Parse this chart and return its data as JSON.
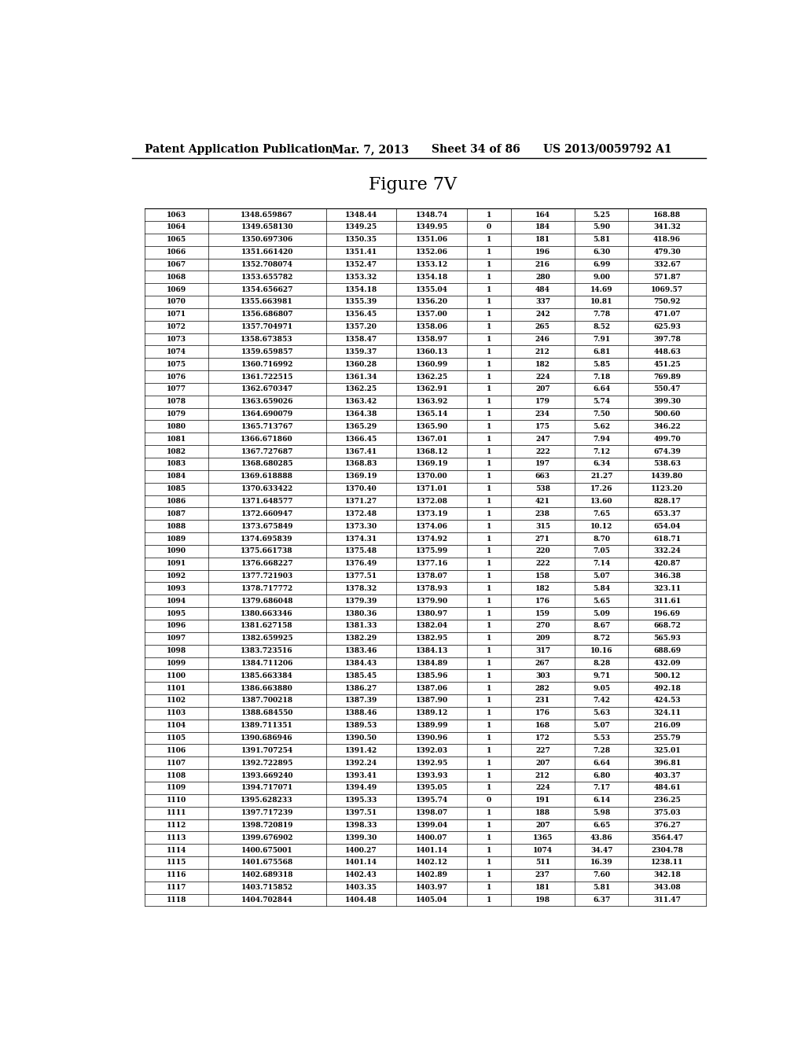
{
  "header_text": "Patent Application Publication",
  "date_text": "Mar. 7, 2013",
  "sheet_text": "Sheet 34 of 86",
  "patent_text": "US 2013/0059792 A1",
  "figure_title": "Figure 7V",
  "background_color": "#ffffff",
  "table_data": [
    [
      "1063",
      "1348.659867",
      "1348.44",
      "1348.74",
      "1",
      "164",
      "5.25",
      "168.88"
    ],
    [
      "1064",
      "1349.658130",
      "1349.25",
      "1349.95",
      "0",
      "184",
      "5.90",
      "341.32"
    ],
    [
      "1065",
      "1350.697306",
      "1350.35",
      "1351.06",
      "1",
      "181",
      "5.81",
      "418.96"
    ],
    [
      "1066",
      "1351.661420",
      "1351.41",
      "1352.06",
      "1",
      "196",
      "6.30",
      "479.30"
    ],
    [
      "1067",
      "1352.708074",
      "1352.47",
      "1353.12",
      "1",
      "216",
      "6.99",
      "332.67"
    ],
    [
      "1068",
      "1353.655782",
      "1353.32",
      "1354.18",
      "1",
      "280",
      "9.00",
      "571.87"
    ],
    [
      "1069",
      "1354.656627",
      "1354.18",
      "1355.04",
      "1",
      "484",
      "14.69",
      "1069.57"
    ],
    [
      "1070",
      "1355.663981",
      "1355.39",
      "1356.20",
      "1",
      "337",
      "10.81",
      "750.92"
    ],
    [
      "1071",
      "1356.686807",
      "1356.45",
      "1357.00",
      "1",
      "242",
      "7.78",
      "471.07"
    ],
    [
      "1072",
      "1357.704971",
      "1357.20",
      "1358.06",
      "1",
      "265",
      "8.52",
      "625.93"
    ],
    [
      "1073",
      "1358.673853",
      "1358.47",
      "1358.97",
      "1",
      "246",
      "7.91",
      "397.78"
    ],
    [
      "1074",
      "1359.659857",
      "1359.37",
      "1360.13",
      "1",
      "212",
      "6.81",
      "448.63"
    ],
    [
      "1075",
      "1360.716992",
      "1360.28",
      "1360.99",
      "1",
      "182",
      "5.85",
      "451.25"
    ],
    [
      "1076",
      "1361.722515",
      "1361.34",
      "1362.25",
      "1",
      "224",
      "7.18",
      "769.89"
    ],
    [
      "1077",
      "1362.670347",
      "1362.25",
      "1362.91",
      "1",
      "207",
      "6.64",
      "550.47"
    ],
    [
      "1078",
      "1363.659026",
      "1363.42",
      "1363.92",
      "1",
      "179",
      "5.74",
      "399.30"
    ],
    [
      "1079",
      "1364.690079",
      "1364.38",
      "1365.14",
      "1",
      "234",
      "7.50",
      "500.60"
    ],
    [
      "1080",
      "1365.713767",
      "1365.29",
      "1365.90",
      "1",
      "175",
      "5.62",
      "346.22"
    ],
    [
      "1081",
      "1366.671860",
      "1366.45",
      "1367.01",
      "1",
      "247",
      "7.94",
      "499.70"
    ],
    [
      "1082",
      "1367.727687",
      "1367.41",
      "1368.12",
      "1",
      "222",
      "7.12",
      "674.39"
    ],
    [
      "1083",
      "1368.680285",
      "1368.83",
      "1369.19",
      "1",
      "197",
      "6.34",
      "538.63"
    ],
    [
      "1084",
      "1369.618888",
      "1369.19",
      "1370.00",
      "1",
      "663",
      "21.27",
      "1439.80"
    ],
    [
      "1085",
      "1370.633422",
      "1370.40",
      "1371.01",
      "1",
      "538",
      "17.26",
      "1123.20"
    ],
    [
      "1086",
      "1371.648577",
      "1371.27",
      "1372.08",
      "1",
      "421",
      "13.60",
      "828.17"
    ],
    [
      "1087",
      "1372.660947",
      "1372.48",
      "1373.19",
      "1",
      "238",
      "7.65",
      "653.37"
    ],
    [
      "1088",
      "1373.675849",
      "1373.30",
      "1374.06",
      "1",
      "315",
      "10.12",
      "654.04"
    ],
    [
      "1089",
      "1374.695839",
      "1374.31",
      "1374.92",
      "1",
      "271",
      "8.70",
      "618.71"
    ],
    [
      "1090",
      "1375.661738",
      "1375.48",
      "1375.99",
      "1",
      "220",
      "7.05",
      "332.24"
    ],
    [
      "1091",
      "1376.668227",
      "1376.49",
      "1377.16",
      "1",
      "222",
      "7.14",
      "420.87"
    ],
    [
      "1092",
      "1377.721903",
      "1377.51",
      "1378.07",
      "1",
      "158",
      "5.07",
      "346.38"
    ],
    [
      "1093",
      "1378.717772",
      "1378.32",
      "1378.93",
      "1",
      "182",
      "5.84",
      "323.11"
    ],
    [
      "1094",
      "1379.686048",
      "1379.39",
      "1379.90",
      "1",
      "176",
      "5.65",
      "311.61"
    ],
    [
      "1095",
      "1380.663346",
      "1380.36",
      "1380.97",
      "1",
      "159",
      "5.09",
      "196.69"
    ],
    [
      "1096",
      "1381.627158",
      "1381.33",
      "1382.04",
      "1",
      "270",
      "8.67",
      "668.72"
    ],
    [
      "1097",
      "1382.659925",
      "1382.29",
      "1382.95",
      "1",
      "209",
      "8.72",
      "565.93"
    ],
    [
      "1098",
      "1383.723516",
      "1383.46",
      "1384.13",
      "1",
      "317",
      "10.16",
      "688.69"
    ],
    [
      "1099",
      "1384.711206",
      "1384.43",
      "1384.89",
      "1",
      "267",
      "8.28",
      "432.09"
    ],
    [
      "1100",
      "1385.663384",
      "1385.45",
      "1385.96",
      "1",
      "303",
      "9.71",
      "500.12"
    ],
    [
      "1101",
      "1386.663880",
      "1386.27",
      "1387.06",
      "1",
      "282",
      "9.05",
      "492.18"
    ],
    [
      "1102",
      "1387.700218",
      "1387.39",
      "1387.90",
      "1",
      "231",
      "7.42",
      "424.53"
    ],
    [
      "1103",
      "1388.684550",
      "1388.46",
      "1389.12",
      "1",
      "176",
      "5.63",
      "324.11"
    ],
    [
      "1104",
      "1389.711351",
      "1389.53",
      "1389.99",
      "1",
      "168",
      "5.07",
      "216.09"
    ],
    [
      "1105",
      "1390.686946",
      "1390.50",
      "1390.96",
      "1",
      "172",
      "5.53",
      "255.79"
    ],
    [
      "1106",
      "1391.707254",
      "1391.42",
      "1392.03",
      "1",
      "227",
      "7.28",
      "325.01"
    ],
    [
      "1107",
      "1392.722895",
      "1392.24",
      "1392.95",
      "1",
      "207",
      "6.64",
      "396.81"
    ],
    [
      "1108",
      "1393.669240",
      "1393.41",
      "1393.93",
      "1",
      "212",
      "6.80",
      "403.37"
    ],
    [
      "1109",
      "1394.717071",
      "1394.49",
      "1395.05",
      "1",
      "224",
      "7.17",
      "484.61"
    ],
    [
      "1110",
      "1395.628233",
      "1395.33",
      "1395.74",
      "0",
      "191",
      "6.14",
      "236.25"
    ],
    [
      "1111",
      "1397.717239",
      "1397.51",
      "1398.07",
      "1",
      "188",
      "5.98",
      "375.03"
    ],
    [
      "1112",
      "1398.720819",
      "1398.33",
      "1399.04",
      "1",
      "207",
      "6.65",
      "376.27"
    ],
    [
      "1113",
      "1399.676902",
      "1399.30",
      "1400.07",
      "1",
      "1365",
      "43.86",
      "3564.47"
    ],
    [
      "1114",
      "1400.675001",
      "1400.27",
      "1401.14",
      "1",
      "1074",
      "34.47",
      "2304.78"
    ],
    [
      "1115",
      "1401.675568",
      "1401.14",
      "1402.12",
      "1",
      "511",
      "16.39",
      "1238.11"
    ],
    [
      "1116",
      "1402.689318",
      "1402.43",
      "1402.89",
      "1",
      "237",
      "7.60",
      "342.18"
    ],
    [
      "1117",
      "1403.715852",
      "1403.35",
      "1403.97",
      "1",
      "181",
      "5.81",
      "343.08"
    ],
    [
      "1118",
      "1404.702844",
      "1404.48",
      "1405.04",
      "1",
      "198",
      "6.37",
      "311.47"
    ]
  ]
}
